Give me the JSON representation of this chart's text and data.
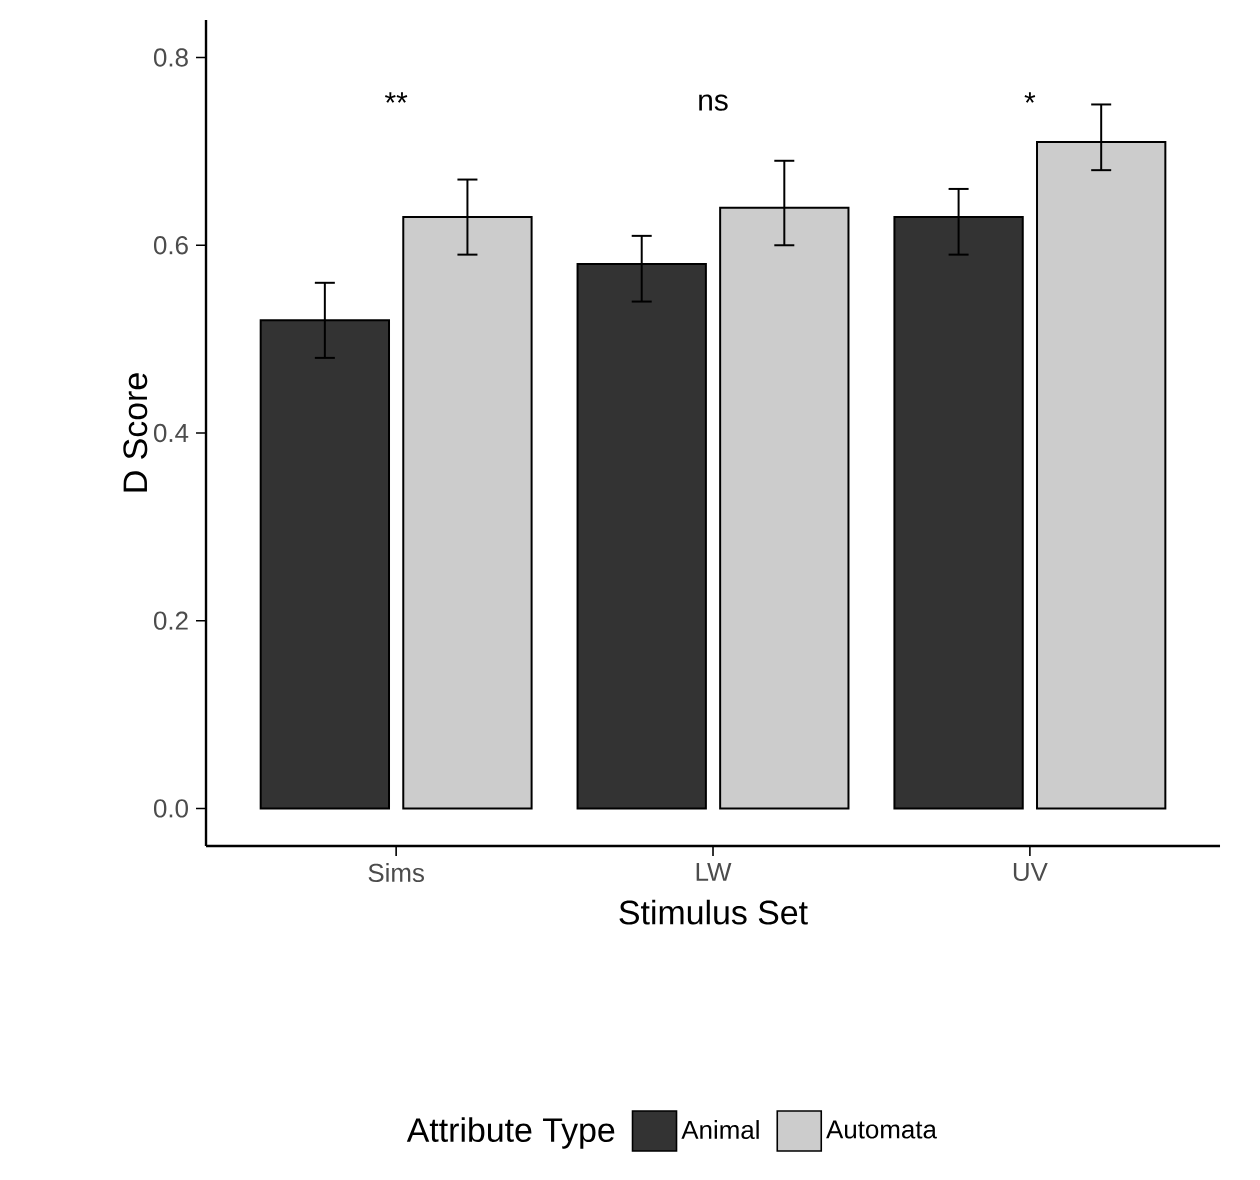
{
  "chart_data": {
    "type": "bar",
    "xlabel": "Stimulus Set",
    "ylabel": "D Score",
    "legend_title": "Attribute Type",
    "categories": [
      "Sims",
      "LW",
      "UV"
    ],
    "series": [
      {
        "name": "Animal",
        "color": "#333333",
        "values": [
          0.52,
          0.58,
          0.63
        ],
        "errors": [
          [
            0.48,
            0.56
          ],
          [
            0.54,
            0.61
          ],
          [
            0.59,
            0.66
          ]
        ]
      },
      {
        "name": "Automata",
        "color": "#cccccc",
        "values": [
          0.63,
          0.64,
          0.71
        ],
        "errors": [
          [
            0.59,
            0.67
          ],
          [
            0.6,
            0.69
          ],
          [
            0.68,
            0.75
          ]
        ]
      }
    ],
    "ylim": [
      -0.04,
      0.84
    ],
    "yticks": [
      {
        "value": 0,
        "label": "0.0"
      },
      {
        "value": 0.2,
        "label": "0.2"
      },
      {
        "value": 0.4,
        "label": "0.4"
      },
      {
        "value": 0.6,
        "label": "0.6"
      },
      {
        "value": 0.8,
        "label": "0.8"
      }
    ],
    "annotations": [
      "**",
      "ns",
      "*"
    ],
    "legend": "bottom",
    "grid": false
  }
}
